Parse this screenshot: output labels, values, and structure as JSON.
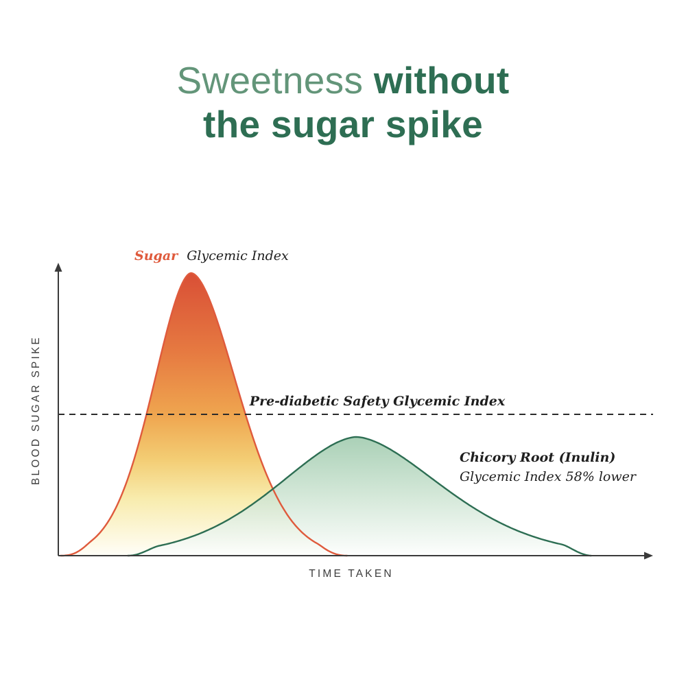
{
  "title": {
    "light_text": "Sweetness",
    "bold_text_line1": "without",
    "line2": "the sugar spike",
    "light_color": "#639579",
    "dark_color": "#2e6e53"
  },
  "chart_data": {
    "type": "area",
    "title": "Sweetness without the sugar spike",
    "xlabel": "TIME TAKEN",
    "ylabel": "BLOOD SUGAR SPIKE",
    "grid": false,
    "legend_position": "inline-annotations",
    "x_range_note": "unlabeled time axis, arrows on both axes",
    "threshold": {
      "label": "Pre-diabetic Safety Glycemic Index",
      "level_relative_to_sugar_peak": 0.5,
      "line_style": "dashed",
      "color": "#2b2b2b"
    },
    "series": [
      {
        "name": "Sugar Glycemic Index",
        "label_name": "Sugar",
        "label_rest": "Glycemic Index",
        "color": "#df5a3c",
        "peak": 1.0,
        "peak_x": 0.225,
        "sigma_left": 0.063,
        "sigma_right": 0.077,
        "power": 1.8,
        "x_start": 0.004,
        "x_end": 0.49,
        "fill_opacity": 1,
        "fill_gradient": [
          {
            "at": 0,
            "color": "#d94f36"
          },
          {
            "at": 0.28,
            "color": "#e67a41"
          },
          {
            "at": 0.5,
            "color": "#efa54f"
          },
          {
            "at": 0.66,
            "color": "#f3cd74"
          },
          {
            "at": 0.8,
            "color": "#f8ecae"
          },
          {
            "at": 1,
            "color": "#fffef8"
          }
        ]
      },
      {
        "name": "Chicory Root (Inulin)",
        "label_line1": "Chicory Root (Inulin)",
        "label_line2": "Glycemic Index 58% lower",
        "glycemic_index_vs_sugar": "58% lower",
        "color": "#2d6e53",
        "peak": 0.42,
        "peak_x": 0.505,
        "sigma_left": 0.13,
        "sigma_right": 0.14,
        "power": 1.7,
        "x_start": 0.118,
        "x_end": 0.905,
        "fill_opacity": 0.85,
        "fill_gradient": [
          {
            "at": 0,
            "color": "#9bc8aa"
          },
          {
            "at": 0.5,
            "color": "#cde4d2"
          },
          {
            "at": 1,
            "color": "#fdfefd"
          }
        ]
      }
    ]
  }
}
